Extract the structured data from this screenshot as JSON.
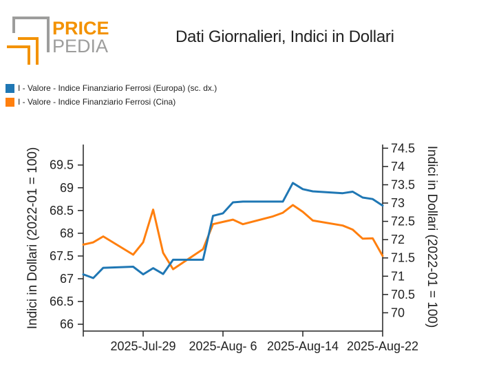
{
  "logo": {
    "line1": "PRICE",
    "line2": "PEDIA",
    "color_orange": "#f39200",
    "color_gray": "#9d9d9c"
  },
  "title": "Dati Giornalieri, Indici in Dollari",
  "legend": [
    {
      "label": "I - Valore - Indice Finanziario Ferrosi (Europa) (sc. dx.)",
      "color": "#1f77b4"
    },
    {
      "label": "I - Valore - Indice Finanziario Ferrosi (Cina)",
      "color": "#ff7f0e"
    }
  ],
  "chart_data": {
    "type": "line",
    "ylabel": "Indici in Dollari (2022-01 = 100)",
    "ylabel_right": "Indici in Dollari (2022-01 = 100)",
    "x_tick_labels": [
      "2025-Jul-29",
      "2025-Aug- 6",
      "2025-Aug-14",
      "2025-Aug-22"
    ],
    "x_tick_dates": [
      "2025-07-29",
      "2025-08-06",
      "2025-08-14",
      "2025-08-22"
    ],
    "xlim": [
      "2025-07-23",
      "2025-08-22"
    ],
    "y_left": {
      "ticks": [
        "66",
        "66.5",
        "67",
        "67.5",
        "68",
        "68.5",
        "69",
        "69.5"
      ],
      "lim": [
        65.85,
        69.95
      ]
    },
    "y_right": {
      "ticks": [
        "70",
        "70.5",
        "71",
        "71.5",
        "72",
        "72.5",
        "73",
        "73.5",
        "74",
        "74.5"
      ],
      "lim": [
        69.5,
        74.6
      ]
    },
    "grid": false,
    "series": [
      {
        "name": "I - Valore - Indice Finanziario Ferrosi (Europa) (sc. dx.)",
        "axis": "right",
        "color": "#1f77b4",
        "x": [
          "2025-07-23",
          "2025-07-24",
          "2025-07-25",
          "2025-07-28",
          "2025-07-29",
          "2025-07-30",
          "2025-07-31",
          "2025-08-01",
          "2025-08-04",
          "2025-08-05",
          "2025-08-06",
          "2025-08-07",
          "2025-08-08",
          "2025-08-11",
          "2025-08-12",
          "2025-08-13",
          "2025-08-14",
          "2025-08-15",
          "2025-08-18",
          "2025-08-19",
          "2025-08-20",
          "2025-08-21",
          "2025-08-22"
        ],
        "values": [
          71.05,
          70.95,
          71.23,
          71.26,
          71.05,
          71.22,
          71.06,
          71.45,
          71.45,
          72.65,
          72.72,
          73.02,
          73.04,
          73.04,
          73.04,
          73.55,
          73.38,
          73.32,
          73.27,
          73.31,
          73.15,
          73.11,
          72.93
        ]
      },
      {
        "name": "I - Valore - Indice Finanziario Ferrosi (Cina)",
        "axis": "left",
        "color": "#ff7f0e",
        "x": [
          "2025-07-23",
          "2025-07-24",
          "2025-07-25",
          "2025-07-28",
          "2025-07-29",
          "2025-07-30",
          "2025-07-31",
          "2025-08-01",
          "2025-08-04",
          "2025-08-05",
          "2025-08-06",
          "2025-08-07",
          "2025-08-08",
          "2025-08-11",
          "2025-08-12",
          "2025-08-13",
          "2025-08-14",
          "2025-08-15",
          "2025-08-18",
          "2025-08-19",
          "2025-08-20",
          "2025-08-21",
          "2025-08-22"
        ],
        "values": [
          67.75,
          67.8,
          67.93,
          67.53,
          67.8,
          68.52,
          67.57,
          67.21,
          67.65,
          68.2,
          68.25,
          68.3,
          68.2,
          68.37,
          68.45,
          68.62,
          68.47,
          68.28,
          68.17,
          68.08,
          67.88,
          67.89,
          67.5
        ]
      }
    ]
  }
}
